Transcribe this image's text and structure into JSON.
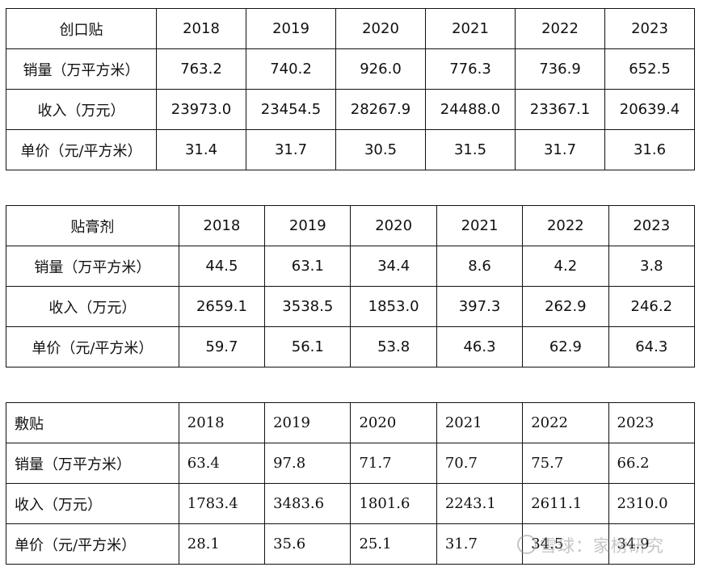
{
  "tables": [
    {
      "name": "创口贴",
      "years": [
        "2018",
        "2019",
        "2020",
        "2021",
        "2022",
        "2023"
      ],
      "rows": [
        {
          "label": "销量（万平方米）",
          "values": [
            "763.2",
            "740.2",
            "926.0",
            "776.3",
            "736.9",
            "652.5"
          ]
        },
        {
          "label": "收入（万元）",
          "values": [
            "23973.0",
            "23454.5",
            "28267.9",
            "24488.0",
            "23367.1",
            "20639.4"
          ]
        },
        {
          "label": "单价（元/平方米）",
          "values": [
            "31.4",
            "31.7",
            "30.5",
            "31.5",
            "31.7",
            "31.6"
          ]
        }
      ]
    },
    {
      "name": "贴膏剂",
      "years": [
        "2018",
        "2019",
        "2020",
        "2021",
        "2022",
        "2023"
      ],
      "rows": [
        {
          "label": "销量（万平方米）",
          "values": [
            "44.5",
            "63.1",
            "34.4",
            "8.6",
            "4.2",
            "3.8"
          ]
        },
        {
          "label": "收入（万元）",
          "values": [
            "2659.1",
            "3538.5",
            "1853.0",
            "397.3",
            "262.9",
            "246.2"
          ]
        },
        {
          "label": "单价（元/平方米）",
          "values": [
            "59.7",
            "56.1",
            "53.8",
            "46.3",
            "62.9",
            "64.3"
          ]
        }
      ]
    },
    {
      "name": "敷贴",
      "years": [
        "2018",
        "2019",
        "2020",
        "2021",
        "2022",
        "2023"
      ],
      "rows": [
        {
          "label": "销量（万平方米）",
          "values": [
            "63.4",
            "97.8",
            "71.7",
            "70.7",
            "75.7",
            "66.2"
          ]
        },
        {
          "label": "收入（万元）",
          "values": [
            "1783.4",
            "3483.6",
            "1801.6",
            "2243.1",
            "2611.1",
            "2310.0"
          ]
        },
        {
          "label": "单价（元/平方米）",
          "values": [
            "28.1",
            "35.6",
            "25.1",
            "31.7",
            "34.5",
            "34.9"
          ]
        }
      ]
    }
  ],
  "watermark": {
    "text": "雪球：家榜研究"
  }
}
